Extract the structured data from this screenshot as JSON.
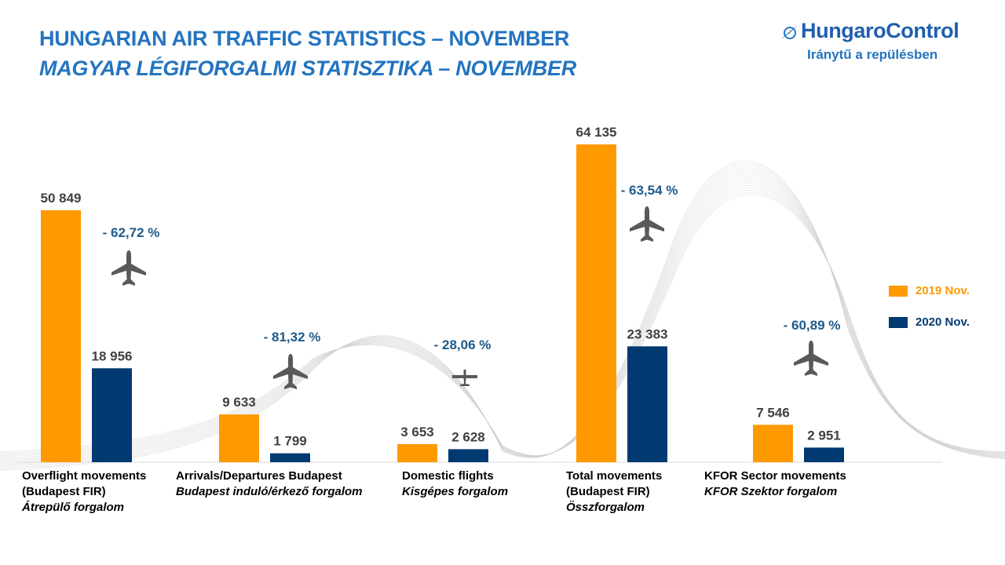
{
  "title": {
    "line1": "HUNGARIAN AIR TRAFFIC STATISTICS – NOVEMBER",
    "line2": "MAGYAR LÉGIFORGALMI STATISZTIKA – NOVEMBER"
  },
  "logo": {
    "name": "HungaroControl",
    "tagline": "Iránytű a repülésben"
  },
  "legend": [
    {
      "label": "2019 Nov.",
      "color": "#ff9900"
    },
    {
      "label": "2020 Nov.",
      "color": "#003a70"
    }
  ],
  "colors": {
    "accent": "#2474c0",
    "change_text": "#1f5a8a",
    "value_text": "#404040"
  },
  "categories": [
    {
      "line1": "Overflight movements",
      "line2": "(Budapest FIR)",
      "line3": "Átrepülő forgalom"
    },
    {
      "line1": "Arrivals/Departures Budapest",
      "line2": "Budapest induló/érkező forgalom",
      "line3": ""
    },
    {
      "line1": "Domestic flights",
      "line2": "Kisgépes forgalom",
      "line3": ""
    },
    {
      "line1": "Total movements",
      "line2": "(Budapest FIR)",
      "line3": "Összforgalom"
    },
    {
      "line1": "KFOR Sector movements",
      "line2": "KFOR Szektor forgalom",
      "line3": ""
    }
  ],
  "chart_data": {
    "type": "bar",
    "categories": [
      "Overflight movements (Budapest FIR) Átrepülő forgalom",
      "Arrivals/Departures Budapest Budapest induló/érkező forgalom",
      "Domestic flights Kisgépes forgalom",
      "Total movements (Budapest FIR) Összforgalom",
      "KFOR Sector movements KFOR Szektor forgalom"
    ],
    "series": [
      {
        "name": "2019 Nov.",
        "values": [
          50849,
          9633,
          3653,
          64135,
          7546
        ],
        "labels": [
          "50 849",
          "9 633",
          "3 653",
          "64 135",
          "7 546"
        ]
      },
      {
        "name": "2020 Nov.",
        "values": [
          18956,
          1799,
          2628,
          23383,
          2951
        ],
        "labels": [
          "18 956",
          "1 799",
          "2 628",
          "23 383",
          "2 951"
        ]
      }
    ],
    "changes": [
      "- 62,72 %",
      "- 81,32 %",
      "- 28,06 %",
      "- 63,54 %",
      "- 60,89 %"
    ],
    "icons": [
      "airliner-icon",
      "airliner-icon",
      "small-plane-icon",
      "airliner-icon",
      "airliner-icon"
    ],
    "ylim": [
      0,
      64135
    ],
    "grid": false,
    "legend_position": "right"
  }
}
